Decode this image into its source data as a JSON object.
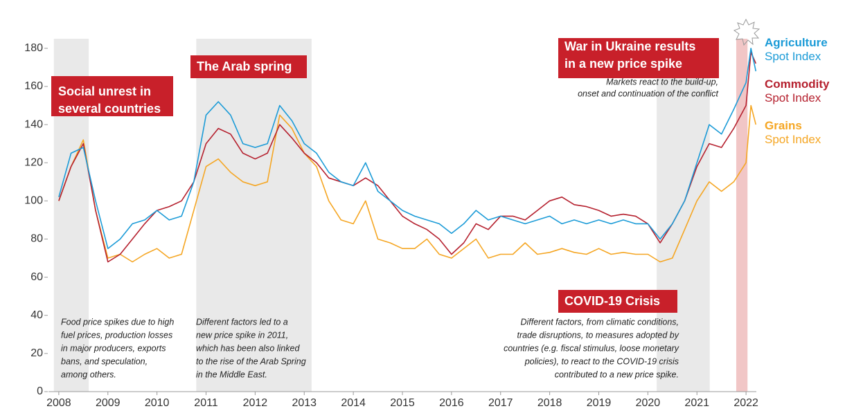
{
  "chart_data": {
    "type": "line",
    "x": [
      2008,
      2008.25,
      2008.5,
      2008.75,
      2009,
      2009.25,
      2009.5,
      2009.75,
      2010,
      2010.25,
      2010.5,
      2010.75,
      2011,
      2011.25,
      2011.5,
      2011.75,
      2012,
      2012.25,
      2012.5,
      2012.75,
      2013,
      2013.25,
      2013.5,
      2013.75,
      2014,
      2014.25,
      2014.5,
      2014.75,
      2015,
      2015.25,
      2015.5,
      2015.75,
      2016,
      2016.25,
      2016.5,
      2016.75,
      2017,
      2017.25,
      2017.5,
      2017.75,
      2018,
      2018.25,
      2018.5,
      2018.75,
      2019,
      2019.25,
      2019.5,
      2019.75,
      2020,
      2020.25,
      2020.5,
      2020.75,
      2021,
      2021.25,
      2021.5,
      2021.75,
      2022,
      2022.1,
      2022.2
    ],
    "series": [
      {
        "name": "Agriculture Spot Index",
        "color": "#1b9bd7",
        "values": [
          102,
          125,
          128,
          100,
          75,
          80,
          88,
          90,
          95,
          90,
          92,
          110,
          145,
          152,
          145,
          130,
          128,
          130,
          150,
          142,
          130,
          125,
          115,
          110,
          108,
          120,
          105,
          100,
          95,
          92,
          90,
          88,
          83,
          88,
          95,
          90,
          92,
          90,
          88,
          90,
          92,
          88,
          90,
          88,
          90,
          88,
          90,
          88,
          88,
          80,
          88,
          100,
          120,
          140,
          135,
          148,
          162,
          180,
          168
        ]
      },
      {
        "name": "Commodity Spot Index",
        "color": "#b5202e",
        "values": [
          100,
          118,
          130,
          95,
          68,
          72,
          80,
          88,
          95,
          97,
          100,
          110,
          130,
          138,
          135,
          125,
          122,
          125,
          140,
          133,
          125,
          120,
          112,
          110,
          108,
          112,
          108,
          100,
          92,
          88,
          85,
          80,
          72,
          78,
          88,
          85,
          92,
          92,
          90,
          95,
          100,
          102,
          98,
          97,
          95,
          92,
          93,
          92,
          88,
          78,
          88,
          100,
          118,
          130,
          128,
          138,
          150,
          178,
          172
        ]
      },
      {
        "name": "Grains Spot Index",
        "color": "#f5a623",
        "values": [
          100,
          118,
          132,
          95,
          70,
          72,
          68,
          72,
          75,
          70,
          72,
          95,
          118,
          122,
          115,
          110,
          108,
          110,
          145,
          138,
          125,
          118,
          100,
          90,
          88,
          100,
          80,
          78,
          75,
          75,
          80,
          72,
          70,
          75,
          80,
          70,
          72,
          72,
          78,
          72,
          73,
          75,
          73,
          72,
          75,
          72,
          73,
          72,
          72,
          68,
          70,
          85,
          100,
          110,
          105,
          110,
          120,
          150,
          140
        ]
      }
    ],
    "xlim": [
      2007.79,
      2022.21
    ],
    "ylim": [
      0,
      185
    ],
    "xticks": [
      2008,
      2009,
      2010,
      2011,
      2012,
      2013,
      2014,
      2015,
      2016,
      2017,
      2018,
      2019,
      2020,
      2021,
      2022
    ],
    "yticks": [
      0,
      20,
      40,
      60,
      80,
      100,
      120,
      140,
      160,
      180
    ],
    "grid": false,
    "shaded_periods": [
      {
        "start": 2007.9,
        "end": 2008.61,
        "color": "#e9e9e9"
      },
      {
        "start": 2010.8,
        "end": 2013.15,
        "color": "#e9e9e9"
      },
      {
        "start": 2020.18,
        "end": 2021.26,
        "color": "#e9e9e9"
      },
      {
        "start": 2021.8,
        "end": 2022.03,
        "color": "#f1c6c6"
      }
    ],
    "annotations": [
      {
        "title": [
          "Social unrest in",
          "several countries"
        ],
        "note": [
          "Food price spikes due to high",
          "fuel prices, production losses",
          "in major producers, exports",
          "bans, and speculation,",
          "among others."
        ]
      },
      {
        "title": [
          "The Arab spring"
        ],
        "note": [
          "Different factors led to a",
          "new price spike in 2011,",
          "which has been also linked",
          "to the rise of the Arab Spring",
          "in the Middle East."
        ]
      },
      {
        "title": [
          "War in Ukraine results",
          "in a new price spike"
        ],
        "note": [
          "Markets react to the build-up,",
          "onset and continuation of the conflict"
        ]
      },
      {
        "title": [
          "COVID-19 Crisis"
        ],
        "note": [
          "Different factors, from climatic conditions,",
          "trade disruptions, to measures adopted by",
          "countries (e.g. fiscal stimulus, loose monetary",
          "policies), to react to the COVID-19 crisis",
          "contributed to a new price spike."
        ]
      }
    ]
  }
}
